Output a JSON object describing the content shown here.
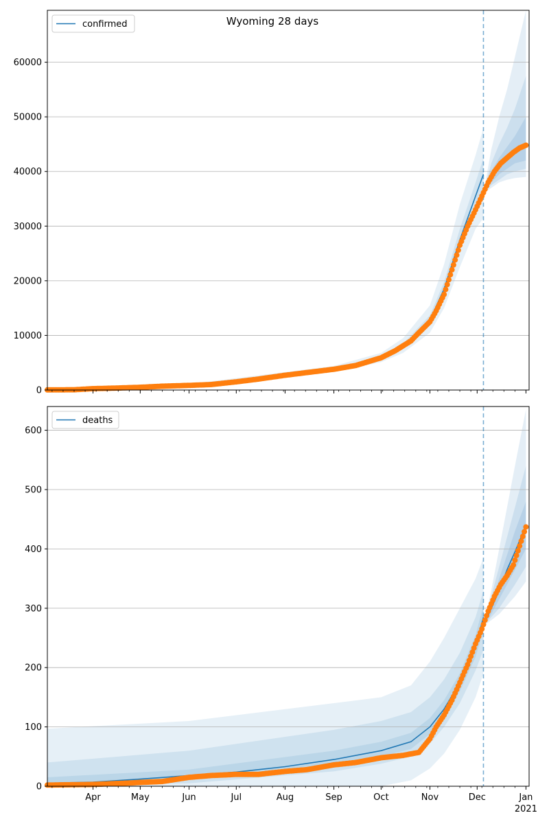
{
  "colors": {
    "line": "#1f77b4",
    "points": "#ff7f0e",
    "band": "#1f77b4",
    "grid": "#b0b0b0",
    "vline": "#1f77b4"
  },
  "chart_data": [
    {
      "type": "line",
      "title": "Wyoming 28 days",
      "legend": {
        "label": "confirmed",
        "position": "top-left"
      },
      "ylim": [
        0,
        69500
      ],
      "yticks": [
        0,
        10000,
        20000,
        30000,
        40000,
        50000,
        60000
      ],
      "ytick_labels": [
        "0",
        "10000",
        "20000",
        "30000",
        "40000",
        "50000",
        "60000"
      ],
      "grid": "y",
      "forecast_start": "2020-12-05",
      "observed": {
        "name": "confirmed",
        "x": [
          "2020-03-03",
          "2020-03-20",
          "2020-04-01",
          "2020-04-15",
          "2020-05-01",
          "2020-05-15",
          "2020-06-01",
          "2020-06-15",
          "2020-07-01",
          "2020-07-15",
          "2020-08-01",
          "2020-08-15",
          "2020-09-01",
          "2020-09-15",
          "2020-10-01",
          "2020-10-10",
          "2020-10-20",
          "2020-10-25",
          "2020-11-01",
          "2020-11-05",
          "2020-11-10",
          "2020-11-15",
          "2020-11-20",
          "2020-11-25",
          "2020-11-30",
          "2020-12-04",
          "2020-12-08",
          "2020-12-12",
          "2020-12-16",
          "2020-12-20",
          "2020-12-24",
          "2020-12-28",
          "2021-01-01"
        ],
        "y": [
          30,
          50,
          250,
          350,
          500,
          700,
          850,
          1000,
          1500,
          2000,
          2700,
          3200,
          3800,
          4500,
          5900,
          7200,
          9000,
          10500,
          12500,
          14500,
          17500,
          22000,
          26500,
          30000,
          33000,
          35500,
          38000,
          40000,
          41500,
          42500,
          43500,
          44300,
          44800
        ]
      },
      "fit": {
        "x": [
          "2020-03-03",
          "2020-04-01",
          "2020-05-01",
          "2020-06-01",
          "2020-07-01",
          "2020-08-01",
          "2020-09-01",
          "2020-10-01",
          "2020-10-15",
          "2020-11-01",
          "2020-11-10",
          "2020-11-20",
          "2020-11-30",
          "2020-12-05"
        ],
        "y": [
          0,
          250,
          500,
          850,
          1500,
          2700,
          3800,
          5900,
          8000,
          12800,
          18500,
          27500,
          35500,
          39500
        ]
      },
      "forecast": {
        "x": [
          "2020-12-05",
          "2020-12-10",
          "2020-12-15",
          "2020-12-20",
          "2020-12-25",
          "2021-01-01"
        ],
        "median": [
          36000,
          39000,
          41000,
          42500,
          43500,
          44500
        ],
        "inner": {
          "lower": [
            36000,
            38000,
            39500,
            40500,
            41500,
            42000
          ],
          "upper": [
            36000,
            40000,
            42500,
            44500,
            46500,
            50000
          ]
        },
        "mid": {
          "lower": [
            36000,
            37500,
            38500,
            39500,
            40000,
            40500
          ],
          "upper": [
            36000,
            41500,
            45000,
            48000,
            51500,
            57500
          ]
        },
        "outer": {
          "lower": [
            36000,
            37000,
            38000,
            38500,
            38800,
            39000
          ],
          "upper": [
            36000,
            44000,
            50000,
            55000,
            61000,
            69500
          ]
        }
      },
      "fit_bands": {
        "x": [
          "2020-03-03",
          "2020-06-01",
          "2020-09-01",
          "2020-10-01",
          "2020-10-15",
          "2020-11-01",
          "2020-11-10",
          "2020-11-20",
          "2020-11-30",
          "2020-12-05"
        ],
        "median": [
          0,
          850,
          3800,
          5900,
          8000,
          12800,
          18500,
          27500,
          35500,
          39500
        ],
        "outer_lower": [
          0,
          600,
          3300,
          5100,
          6800,
          10500,
          15000,
          22500,
          29500,
          31500
        ],
        "outer_upper": [
          0,
          1100,
          4400,
          6800,
          9500,
          15500,
          23000,
          34000,
          43000,
          48000
        ],
        "inner_lower": [
          0,
          750,
          3600,
          5600,
          7500,
          12000,
          17200,
          25500,
          33000,
          36000
        ],
        "inner_upper": [
          0,
          950,
          4000,
          6200,
          8500,
          13700,
          19800,
          29500,
          38000,
          42500
        ]
      }
    },
    {
      "type": "line",
      "legend": {
        "label": "deaths",
        "position": "top-left"
      },
      "ylim": [
        0,
        640
      ],
      "yticks": [
        0,
        100,
        200,
        300,
        400,
        500,
        600
      ],
      "ytick_labels": [
        "0",
        "100",
        "200",
        "300",
        "400",
        "500",
        "600"
      ],
      "grid": "y",
      "forecast_start": "2020-12-05",
      "xlim": [
        "2020-03-03",
        "2021-01-03"
      ],
      "xticks": [
        "2020-04-01",
        "2020-05-01",
        "2020-06-01",
        "2020-07-01",
        "2020-08-01",
        "2020-09-01",
        "2020-10-01",
        "2020-11-01",
        "2020-12-01",
        "2021-01-01"
      ],
      "xtick_labels": [
        "Apr",
        "May",
        "Jun",
        "Jul",
        "Aug",
        "Sep",
        "Oct",
        "Nov",
        "Dec",
        "Jan"
      ],
      "xtick_year_label": "2021",
      "observed": {
        "name": "deaths",
        "x": [
          "2020-03-03",
          "2020-04-01",
          "2020-04-20",
          "2020-05-15",
          "2020-06-01",
          "2020-06-15",
          "2020-07-01",
          "2020-07-15",
          "2020-08-01",
          "2020-08-15",
          "2020-09-01",
          "2020-09-15",
          "2020-10-01",
          "2020-10-15",
          "2020-10-25",
          "2020-11-01",
          "2020-11-05",
          "2020-11-10",
          "2020-11-15",
          "2020-11-20",
          "2020-11-25",
          "2020-11-30",
          "2020-12-04",
          "2020-12-08",
          "2020-12-12",
          "2020-12-16",
          "2020-12-20",
          "2020-12-24",
          "2020-12-28",
          "2021-01-01"
        ],
        "y": [
          2,
          3,
          5,
          8,
          15,
          18,
          20,
          20,
          25,
          28,
          36,
          40,
          48,
          52,
          57,
          80,
          100,
          120,
          145,
          175,
          205,
          240,
          265,
          295,
          320,
          340,
          355,
          373,
          405,
          437
        ]
      },
      "fit": {
        "x": [
          "2020-03-03",
          "2020-04-01",
          "2020-05-01",
          "2020-06-01",
          "2020-07-01",
          "2020-08-01",
          "2020-09-01",
          "2020-10-01",
          "2020-10-20",
          "2020-11-01",
          "2020-11-10",
          "2020-11-20",
          "2020-11-30",
          "2020-12-05"
        ],
        "y": [
          5,
          7,
          12,
          18,
          24,
          33,
          45,
          60,
          75,
          100,
          130,
          175,
          235,
          285
        ]
      },
      "forecast": {
        "x": [
          "2020-12-05",
          "2020-12-10",
          "2020-12-15",
          "2020-12-20",
          "2020-12-25",
          "2021-01-01"
        ],
        "median": [
          270,
          300,
          330,
          365,
          395,
          440
        ],
        "inner": {
          "lower": [
            270,
            290,
            315,
            340,
            365,
            400
          ],
          "upper": [
            270,
            310,
            350,
            390,
            430,
            480
          ]
        },
        "mid": {
          "lower": [
            270,
            285,
            300,
            320,
            340,
            370
          ],
          "upper": [
            270,
            320,
            370,
            420,
            470,
            540
          ]
        },
        "outer": {
          "lower": [
            270,
            280,
            290,
            305,
            320,
            345
          ],
          "upper": [
            270,
            330,
            400,
            470,
            540,
            635
          ]
        }
      },
      "fit_bands": {
        "x": [
          "2020-03-03",
          "2020-06-01",
          "2020-09-01",
          "2020-10-01",
          "2020-10-20",
          "2020-11-01",
          "2020-11-10",
          "2020-11-20",
          "2020-11-30",
          "2020-12-05"
        ],
        "median": [
          5,
          18,
          45,
          60,
          75,
          100,
          130,
          175,
          235,
          285
        ],
        "outer_lower": [
          0,
          0,
          0,
          0,
          10,
          30,
          55,
          95,
          150,
          190
        ],
        "outer_upper": [
          97,
          110,
          140,
          150,
          170,
          210,
          250,
          300,
          350,
          385
        ],
        "mid_lower": [
          0,
          5,
          25,
          38,
          50,
          72,
          100,
          140,
          195,
          230
        ],
        "mid_upper": [
          40,
          60,
          95,
          110,
          125,
          150,
          180,
          225,
          285,
          330
        ],
        "inner_lower": [
          2,
          12,
          38,
          50,
          63,
          88,
          115,
          160,
          218,
          262
        ],
        "inner_upper": [
          15,
          28,
          60,
          75,
          90,
          115,
          145,
          190,
          255,
          305
        ]
      }
    }
  ]
}
